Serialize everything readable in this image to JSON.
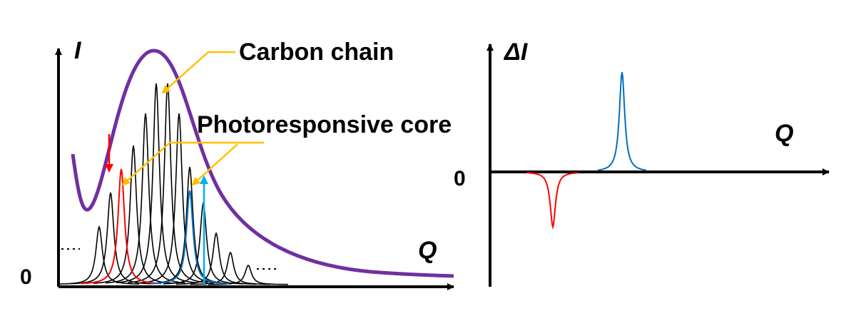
{
  "left_panel": {
    "y_axis_label": "I",
    "x_axis_label": "Q",
    "zero_label": "0",
    "annotations": {
      "carbon_chain": "Carbon chain",
      "photoresponsive_core": "Photoresponsive core"
    }
  },
  "right_panel": {
    "y_axis_label": "ΔI",
    "x_axis_label": "Q",
    "zero_label": "0"
  },
  "colors": {
    "envelope": "#7030A0",
    "peaks": "#000000",
    "decreasing_peak": "#FF0000",
    "increasing_peak": "#0070C0",
    "increase_arrow": "#00B0F0",
    "annotation_arrows": "#FFC000",
    "axes": "#000000"
  },
  "left_peaks": {
    "black_heights": [
      0.27,
      0.43,
      0.65,
      0.8,
      0.94,
      0.94,
      0.8,
      0.55,
      0.38,
      0.24,
      0.15,
      0.09
    ],
    "red_peak_height": 0.54,
    "blue_peak_height": 0.44
  },
  "right_peaks": {
    "increase_height": 1.0,
    "decrease_depth": 0.55
  }
}
